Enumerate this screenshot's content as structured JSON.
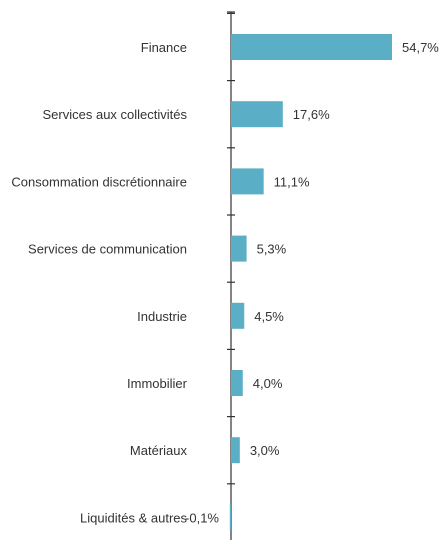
{
  "chart_data": {
    "type": "bar",
    "orientation": "horizontal",
    "categories": [
      "Finance",
      "Services aux collectivités",
      "Consommation discrétionnaire",
      "Services de communication",
      "Industrie",
      "Immobilier",
      "Matériaux",
      "Liquidités & autres"
    ],
    "values": [
      54.7,
      17.6,
      11.1,
      5.3,
      4.5,
      4.0,
      3.0,
      -0.1
    ],
    "value_labels": [
      "54,7%",
      "17,6%",
      "11,1%",
      "5,3%",
      "4,5%",
      "4,0%",
      "3,0%",
      "-0,1%"
    ],
    "title": "",
    "xlabel": "",
    "ylabel": "",
    "grid": false,
    "legend": "none",
    "bar_color": "#5aafc7",
    "axis_color": "#333333",
    "text_color": "#333333"
  }
}
